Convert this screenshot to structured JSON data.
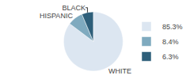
{
  "chart_data": {
    "type": "pie",
    "categories": [
      "WHITE",
      "HISPANIC",
      "BLACK"
    ],
    "values": [
      85.3,
      8.4,
      6.3
    ],
    "value_labels": [
      "85.3%",
      "8.4%",
      "6.3%"
    ],
    "colors": [
      "#dce6f1",
      "#7faabf",
      "#2e5f7a"
    ],
    "legend": "right"
  }
}
